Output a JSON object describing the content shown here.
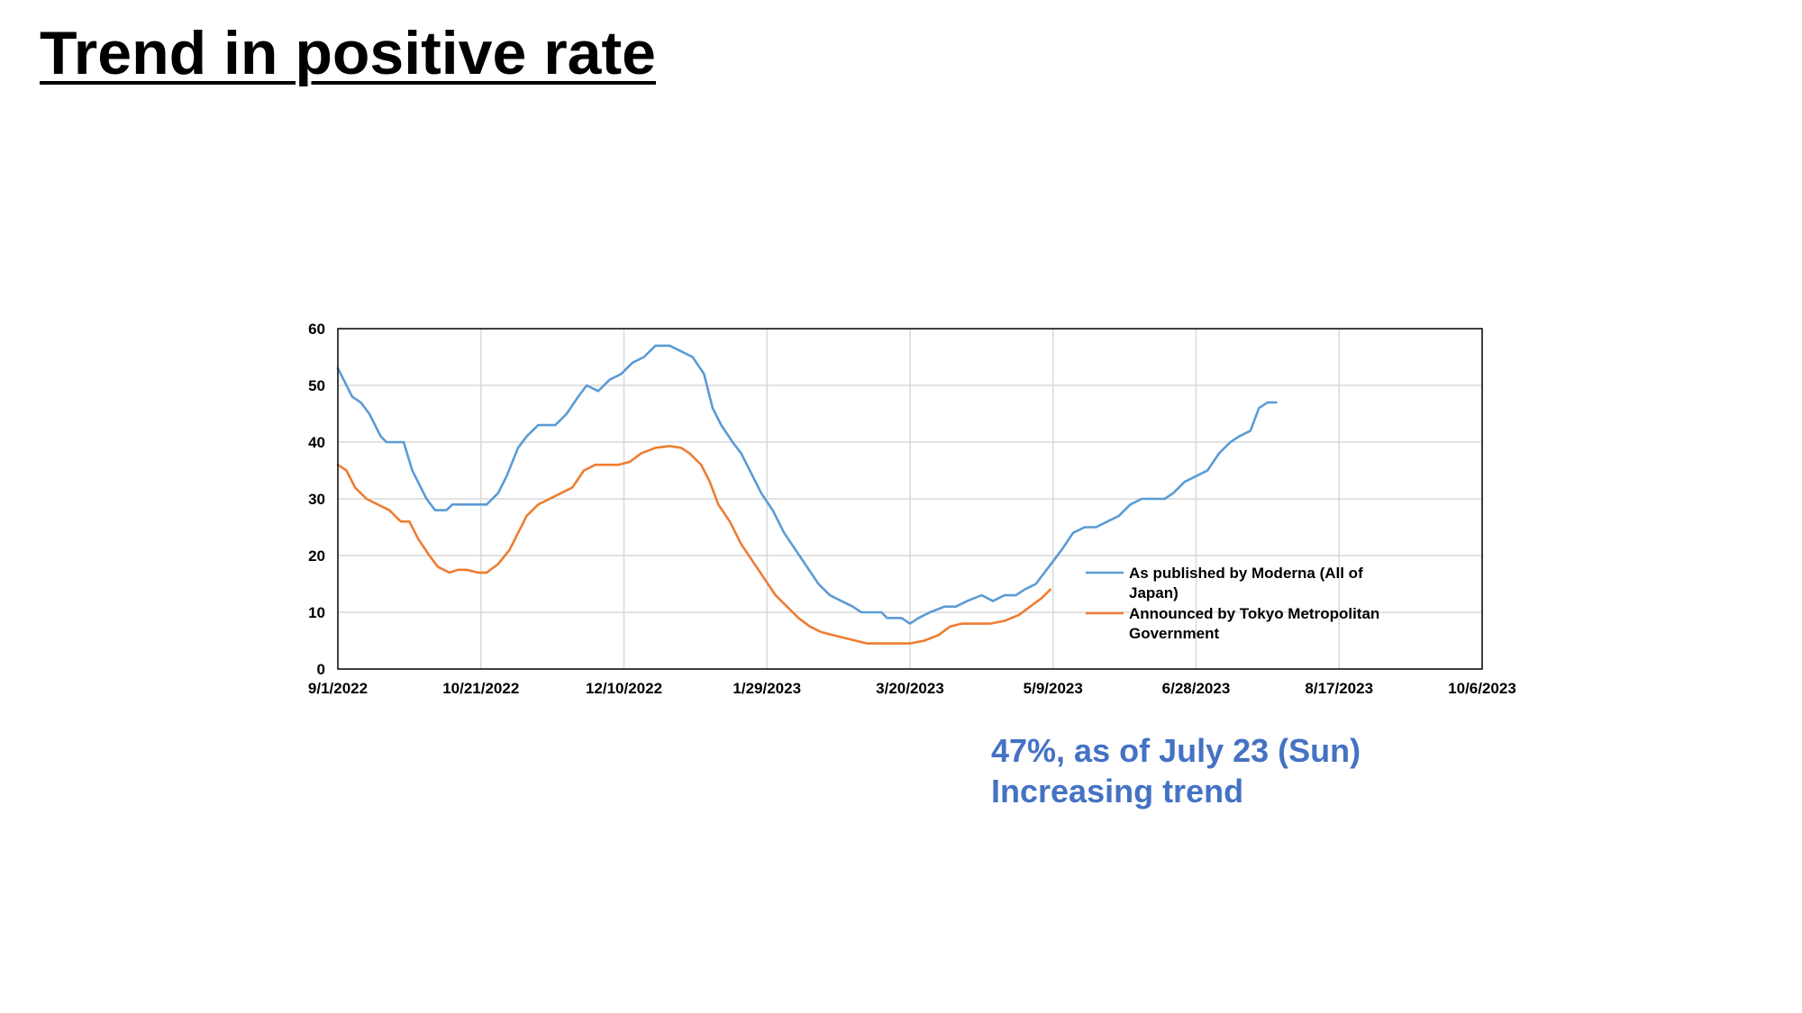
{
  "slide": {
    "title": "Trend in positive rate",
    "annotation_line_1": "47%, as of July 23 (Sun)",
    "annotation_line_2": "Increasing trend",
    "annotation_color": "#4472C4"
  },
  "chart_data": {
    "type": "line",
    "x_axis": {
      "min": "2022-09-01",
      "max": "2023-10-06",
      "tick_dates": [
        "2022-09-01",
        "2022-10-21",
        "2022-12-10",
        "2023-01-29",
        "2023-03-20",
        "2023-05-09",
        "2023-06-28",
        "2023-08-17",
        "2023-10-06"
      ],
      "tick_labels": [
        "9/1/2022",
        "10/21/2022",
        "12/10/2022",
        "1/29/2023",
        "3/20/2023",
        "5/9/2023",
        "6/28/2023",
        "8/17/2023",
        "10/6/2023"
      ]
    },
    "y_axis": {
      "min": 0,
      "max": 60,
      "ticks": [
        0,
        10,
        20,
        30,
        40,
        50,
        60
      ],
      "tick_labels": [
        "0",
        "10",
        "20",
        "30",
        "40",
        "50",
        "60"
      ]
    },
    "grid": true,
    "legend_placement": "right, inside plot area",
    "series": [
      {
        "name": "As published by Moderna (All of Japan)",
        "color": "#5B9BD5",
        "points": [
          [
            "2022-09-01",
            53
          ],
          [
            "2022-09-03",
            51
          ],
          [
            "2022-09-06",
            48
          ],
          [
            "2022-09-09",
            47
          ],
          [
            "2022-09-12",
            45
          ],
          [
            "2022-09-16",
            41
          ],
          [
            "2022-09-18",
            40
          ],
          [
            "2022-09-24",
            40
          ],
          [
            "2022-09-27",
            35
          ],
          [
            "2022-10-02",
            30
          ],
          [
            "2022-10-05",
            28
          ],
          [
            "2022-10-09",
            28
          ],
          [
            "2022-10-11",
            29
          ],
          [
            "2022-10-20",
            29
          ],
          [
            "2022-10-23",
            29
          ],
          [
            "2022-10-27",
            31
          ],
          [
            "2022-10-30",
            34
          ],
          [
            "2022-11-03",
            39
          ],
          [
            "2022-11-06",
            41
          ],
          [
            "2022-11-10",
            43
          ],
          [
            "2022-11-16",
            43
          ],
          [
            "2022-11-20",
            45
          ],
          [
            "2022-11-24",
            48
          ],
          [
            "2022-11-27",
            50
          ],
          [
            "2022-12-01",
            49
          ],
          [
            "2022-12-05",
            51
          ],
          [
            "2022-12-09",
            52
          ],
          [
            "2022-12-13",
            54
          ],
          [
            "2022-12-17",
            55
          ],
          [
            "2022-12-21",
            57
          ],
          [
            "2022-12-26",
            57
          ],
          [
            "2022-12-30",
            56
          ],
          [
            "2023-01-03",
            55
          ],
          [
            "2023-01-07",
            52
          ],
          [
            "2023-01-10",
            46
          ],
          [
            "2023-01-13",
            43
          ],
          [
            "2023-01-17",
            40
          ],
          [
            "2023-01-20",
            38
          ],
          [
            "2023-01-24",
            34
          ],
          [
            "2023-01-27",
            31
          ],
          [
            "2023-01-31",
            28
          ],
          [
            "2023-02-04",
            24
          ],
          [
            "2023-02-08",
            21
          ],
          [
            "2023-02-12",
            18
          ],
          [
            "2023-02-16",
            15
          ],
          [
            "2023-02-20",
            13
          ],
          [
            "2023-02-24",
            12
          ],
          [
            "2023-02-28",
            11
          ],
          [
            "2023-03-03",
            10
          ],
          [
            "2023-03-10",
            10
          ],
          [
            "2023-03-12",
            9
          ],
          [
            "2023-03-17",
            9
          ],
          [
            "2023-03-20",
            8
          ],
          [
            "2023-03-23",
            9
          ],
          [
            "2023-03-27",
            10
          ],
          [
            "2023-04-01",
            11
          ],
          [
            "2023-04-05",
            11
          ],
          [
            "2023-04-09",
            12
          ],
          [
            "2023-04-14",
            13
          ],
          [
            "2023-04-18",
            12
          ],
          [
            "2023-04-22",
            13
          ],
          [
            "2023-04-26",
            13
          ],
          [
            "2023-04-29",
            14
          ],
          [
            "2023-05-03",
            15
          ],
          [
            "2023-05-06",
            17
          ],
          [
            "2023-05-09",
            19
          ],
          [
            "2023-05-12",
            21
          ],
          [
            "2023-05-16",
            24
          ],
          [
            "2023-05-20",
            25
          ],
          [
            "2023-05-24",
            25
          ],
          [
            "2023-05-28",
            26
          ],
          [
            "2023-06-01",
            27
          ],
          [
            "2023-06-05",
            29
          ],
          [
            "2023-06-09",
            30
          ],
          [
            "2023-06-13",
            30
          ],
          [
            "2023-06-17",
            30
          ],
          [
            "2023-06-20",
            31
          ],
          [
            "2023-06-24",
            33
          ],
          [
            "2023-06-28",
            34
          ],
          [
            "2023-07-02",
            35
          ],
          [
            "2023-07-06",
            38
          ],
          [
            "2023-07-10",
            40
          ],
          [
            "2023-07-13",
            41
          ],
          [
            "2023-07-17",
            42
          ],
          [
            "2023-07-20",
            46
          ],
          [
            "2023-07-23",
            47
          ],
          [
            "2023-07-26",
            47
          ]
        ]
      },
      {
        "name": "Announced by Tokyo Metropolitan Government",
        "color": "#ED7D31",
        "points": [
          [
            "2022-09-01",
            36
          ],
          [
            "2022-09-04",
            35
          ],
          [
            "2022-09-07",
            32
          ],
          [
            "2022-09-11",
            30
          ],
          [
            "2022-09-15",
            29
          ],
          [
            "2022-09-19",
            28
          ],
          [
            "2022-09-23",
            26
          ],
          [
            "2022-09-26",
            26
          ],
          [
            "2022-09-29",
            23
          ],
          [
            "2022-10-03",
            20
          ],
          [
            "2022-10-06",
            18
          ],
          [
            "2022-10-10",
            17
          ],
          [
            "2022-10-13",
            17.5
          ],
          [
            "2022-10-16",
            17.5
          ],
          [
            "2022-10-20",
            17
          ],
          [
            "2022-10-23",
            17
          ],
          [
            "2022-10-27",
            18.5
          ],
          [
            "2022-10-31",
            21
          ],
          [
            "2022-11-03",
            24
          ],
          [
            "2022-11-06",
            27
          ],
          [
            "2022-11-10",
            29
          ],
          [
            "2022-11-14",
            30
          ],
          [
            "2022-11-18",
            31
          ],
          [
            "2022-11-22",
            32
          ],
          [
            "2022-11-26",
            35
          ],
          [
            "2022-11-30",
            36
          ],
          [
            "2022-12-04",
            36
          ],
          [
            "2022-12-08",
            36
          ],
          [
            "2022-12-12",
            36.5
          ],
          [
            "2022-12-16",
            38
          ],
          [
            "2022-12-21",
            39
          ],
          [
            "2022-12-26",
            39.3
          ],
          [
            "2022-12-30",
            39
          ],
          [
            "2023-01-02",
            38
          ],
          [
            "2023-01-06",
            36
          ],
          [
            "2023-01-09",
            33
          ],
          [
            "2023-01-12",
            29
          ],
          [
            "2023-01-16",
            26
          ],
          [
            "2023-01-20",
            22
          ],
          [
            "2023-01-24",
            19
          ],
          [
            "2023-01-28",
            16
          ],
          [
            "2023-02-01",
            13
          ],
          [
            "2023-02-05",
            11
          ],
          [
            "2023-02-09",
            9
          ],
          [
            "2023-02-13",
            7.5
          ],
          [
            "2023-02-17",
            6.5
          ],
          [
            "2023-02-21",
            6
          ],
          [
            "2023-02-25",
            5.5
          ],
          [
            "2023-03-01",
            5
          ],
          [
            "2023-03-05",
            4.5
          ],
          [
            "2023-03-10",
            4.5
          ],
          [
            "2023-03-15",
            4.5
          ],
          [
            "2023-03-20",
            4.5
          ],
          [
            "2023-03-25",
            5
          ],
          [
            "2023-03-30",
            6
          ],
          [
            "2023-04-03",
            7.5
          ],
          [
            "2023-04-07",
            8
          ],
          [
            "2023-04-12",
            8
          ],
          [
            "2023-04-17",
            8
          ],
          [
            "2023-04-22",
            8.5
          ],
          [
            "2023-04-27",
            9.5
          ],
          [
            "2023-05-01",
            11
          ],
          [
            "2023-05-05",
            12.5
          ],
          [
            "2023-05-08",
            14
          ]
        ]
      }
    ]
  }
}
